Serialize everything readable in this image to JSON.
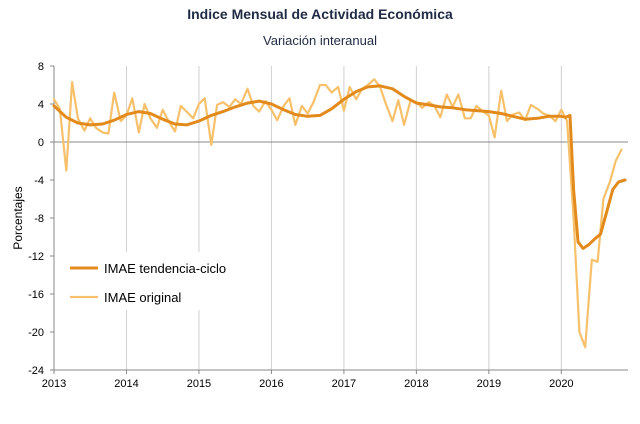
{
  "chart_data": {
    "type": "line",
    "title": "Indice Mensual de  Actividad Económica",
    "subtitle": "Variación interanual",
    "ylabel": "Porcentajes",
    "xlabel": "",
    "ylim": [
      -24,
      8
    ],
    "xlim": [
      2013,
      2020.92
    ],
    "yticks": [
      8,
      4,
      0,
      -4,
      -8,
      -12,
      -16,
      -20,
      -24
    ],
    "xticks": [
      "2013",
      "2014",
      "2015",
      "2016",
      "2017",
      "2018",
      "2019",
      "2020"
    ],
    "grid": "vertical",
    "legend_position": "bottom-left",
    "series": [
      {
        "name": "IMAE tendencia-ciclo",
        "color": "#e28a1c",
        "points": [
          [
            2013.0,
            3.8
          ],
          [
            2013.17,
            2.6
          ],
          [
            2013.33,
            2.0
          ],
          [
            2013.5,
            1.8
          ],
          [
            2013.67,
            1.9
          ],
          [
            2013.83,
            2.3
          ],
          [
            2014.0,
            2.9
          ],
          [
            2014.17,
            3.2
          ],
          [
            2014.33,
            3.0
          ],
          [
            2014.5,
            2.4
          ],
          [
            2014.67,
            1.9
          ],
          [
            2014.83,
            1.8
          ],
          [
            2015.0,
            2.2
          ],
          [
            2015.17,
            2.8
          ],
          [
            2015.33,
            3.2
          ],
          [
            2015.5,
            3.7
          ],
          [
            2015.67,
            4.1
          ],
          [
            2015.83,
            4.3
          ],
          [
            2016.0,
            4.0
          ],
          [
            2016.17,
            3.4
          ],
          [
            2016.33,
            2.9
          ],
          [
            2016.5,
            2.7
          ],
          [
            2016.67,
            2.8
          ],
          [
            2016.83,
            3.5
          ],
          [
            2017.0,
            4.5
          ],
          [
            2017.17,
            5.3
          ],
          [
            2017.33,
            5.8
          ],
          [
            2017.5,
            5.9
          ],
          [
            2017.67,
            5.6
          ],
          [
            2017.83,
            4.8
          ],
          [
            2018.0,
            4.1
          ],
          [
            2018.17,
            3.9
          ],
          [
            2018.33,
            3.7
          ],
          [
            2018.5,
            3.6
          ],
          [
            2018.67,
            3.4
          ],
          [
            2018.83,
            3.3
          ],
          [
            2019.0,
            3.2
          ],
          [
            2019.17,
            3.0
          ],
          [
            2019.33,
            2.7
          ],
          [
            2019.5,
            2.4
          ],
          [
            2019.67,
            2.5
          ],
          [
            2019.83,
            2.7
          ],
          [
            2020.0,
            2.7
          ],
          [
            2020.06,
            2.6
          ],
          [
            2020.12,
            2.8
          ],
          [
            2020.17,
            -5.0
          ],
          [
            2020.23,
            -10.5
          ],
          [
            2020.3,
            -11.2
          ],
          [
            2020.38,
            -10.8
          ],
          [
            2020.46,
            -10.2
          ],
          [
            2020.54,
            -9.7
          ],
          [
            2020.62,
            -7.5
          ],
          [
            2020.71,
            -5.0
          ],
          [
            2020.79,
            -4.2
          ],
          [
            2020.88,
            -4.0
          ]
        ]
      },
      {
        "name": "IMAE original",
        "color": "#f7c06a",
        "points": [
          [
            2013.0,
            4.5
          ],
          [
            2013.08,
            3.5
          ],
          [
            2013.17,
            -3.0
          ],
          [
            2013.25,
            6.3
          ],
          [
            2013.33,
            2.5
          ],
          [
            2013.42,
            1.2
          ],
          [
            2013.5,
            2.5
          ],
          [
            2013.58,
            1.5
          ],
          [
            2013.67,
            1.0
          ],
          [
            2013.75,
            0.9
          ],
          [
            2013.83,
            5.2
          ],
          [
            2013.92,
            2.2
          ],
          [
            2014.0,
            2.8
          ],
          [
            2014.08,
            4.6
          ],
          [
            2014.17,
            1.0
          ],
          [
            2014.25,
            4.0
          ],
          [
            2014.33,
            2.5
          ],
          [
            2014.42,
            1.5
          ],
          [
            2014.5,
            3.4
          ],
          [
            2014.58,
            2.2
          ],
          [
            2014.67,
            1.1
          ],
          [
            2014.75,
            3.8
          ],
          [
            2014.83,
            3.2
          ],
          [
            2014.92,
            2.5
          ],
          [
            2015.0,
            4.0
          ],
          [
            2015.08,
            4.6
          ],
          [
            2015.17,
            -0.3
          ],
          [
            2015.25,
            3.9
          ],
          [
            2015.33,
            4.2
          ],
          [
            2015.42,
            3.7
          ],
          [
            2015.5,
            4.5
          ],
          [
            2015.58,
            4.0
          ],
          [
            2015.67,
            5.6
          ],
          [
            2015.75,
            3.8
          ],
          [
            2015.83,
            3.2
          ],
          [
            2015.92,
            4.3
          ],
          [
            2016.0,
            3.4
          ],
          [
            2016.08,
            2.3
          ],
          [
            2016.17,
            3.8
          ],
          [
            2016.25,
            4.6
          ],
          [
            2016.33,
            1.8
          ],
          [
            2016.42,
            3.8
          ],
          [
            2016.5,
            3.0
          ],
          [
            2016.58,
            4.2
          ],
          [
            2016.67,
            6.0
          ],
          [
            2016.75,
            6.0
          ],
          [
            2016.83,
            5.2
          ],
          [
            2016.92,
            5.8
          ],
          [
            2017.0,
            3.3
          ],
          [
            2017.08,
            5.8
          ],
          [
            2017.17,
            4.5
          ],
          [
            2017.25,
            5.6
          ],
          [
            2017.33,
            6.0
          ],
          [
            2017.42,
            6.6
          ],
          [
            2017.5,
            5.8
          ],
          [
            2017.58,
            4.0
          ],
          [
            2017.67,
            2.2
          ],
          [
            2017.75,
            4.4
          ],
          [
            2017.83,
            1.8
          ],
          [
            2017.92,
            4.4
          ],
          [
            2018.0,
            4.2
          ],
          [
            2018.08,
            3.6
          ],
          [
            2018.17,
            4.2
          ],
          [
            2018.25,
            3.8
          ],
          [
            2018.33,
            2.6
          ],
          [
            2018.42,
            5.0
          ],
          [
            2018.5,
            3.7
          ],
          [
            2018.58,
            5.0
          ],
          [
            2018.67,
            2.5
          ],
          [
            2018.75,
            2.5
          ],
          [
            2018.83,
            3.8
          ],
          [
            2018.92,
            3.2
          ],
          [
            2019.0,
            2.8
          ],
          [
            2019.08,
            0.5
          ],
          [
            2019.17,
            5.4
          ],
          [
            2019.25,
            2.2
          ],
          [
            2019.33,
            2.9
          ],
          [
            2019.42,
            3.1
          ],
          [
            2019.5,
            2.3
          ],
          [
            2019.58,
            3.9
          ],
          [
            2019.67,
            3.5
          ],
          [
            2019.75,
            3.0
          ],
          [
            2019.83,
            2.8
          ],
          [
            2019.92,
            2.2
          ],
          [
            2020.0,
            3.4
          ],
          [
            2020.08,
            2.2
          ],
          [
            2020.17,
            -8.0
          ],
          [
            2020.25,
            -20.0
          ],
          [
            2020.33,
            -21.6
          ],
          [
            2020.42,
            -12.4
          ],
          [
            2020.5,
            -12.6
          ],
          [
            2020.58,
            -6.0
          ],
          [
            2020.67,
            -4.2
          ],
          [
            2020.75,
            -2.0
          ],
          [
            2020.83,
            -0.8
          ]
        ]
      }
    ]
  }
}
